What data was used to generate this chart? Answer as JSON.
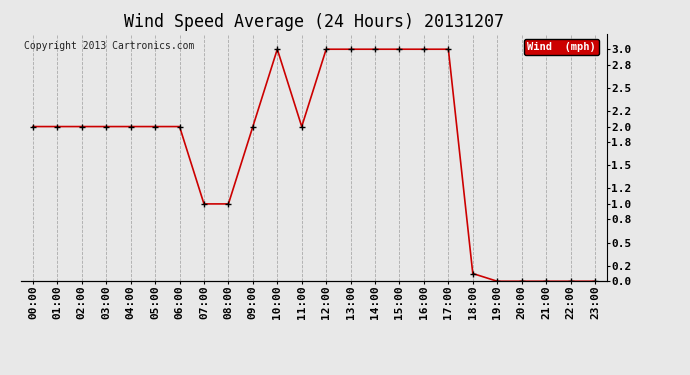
{
  "title": "Wind Speed Average (24 Hours) 20131207",
  "copyright_text": "Copyright 2013 Cartronics.com",
  "legend_label": "Wind  (mph)",
  "legend_bg": "#cc0000",
  "legend_text_color": "#ffffff",
  "line_color": "#cc0000",
  "marker_color": "#000000",
  "background_color": "#e8e8e8",
  "grid_color": "#aaaaaa",
  "ylim": [
    0.0,
    3.2
  ],
  "yticks": [
    0.0,
    0.2,
    0.5,
    0.8,
    1.0,
    1.2,
    1.5,
    1.8,
    2.0,
    2.2,
    2.5,
    2.8,
    3.0
  ],
  "hours": [
    0,
    1,
    2,
    3,
    4,
    5,
    6,
    7,
    8,
    9,
    10,
    11,
    12,
    13,
    14,
    15,
    16,
    17,
    18,
    19,
    20,
    21,
    22,
    23
  ],
  "values": [
    2.0,
    2.0,
    2.0,
    2.0,
    2.0,
    2.0,
    2.0,
    1.0,
    1.0,
    2.0,
    3.0,
    2.0,
    3.0,
    3.0,
    3.0,
    3.0,
    3.0,
    3.0,
    0.1,
    0.0,
    0.0,
    0.0,
    0.0,
    0.0
  ],
  "title_fontsize": 12,
  "tick_fontsize": 8,
  "copyright_fontsize": 7
}
